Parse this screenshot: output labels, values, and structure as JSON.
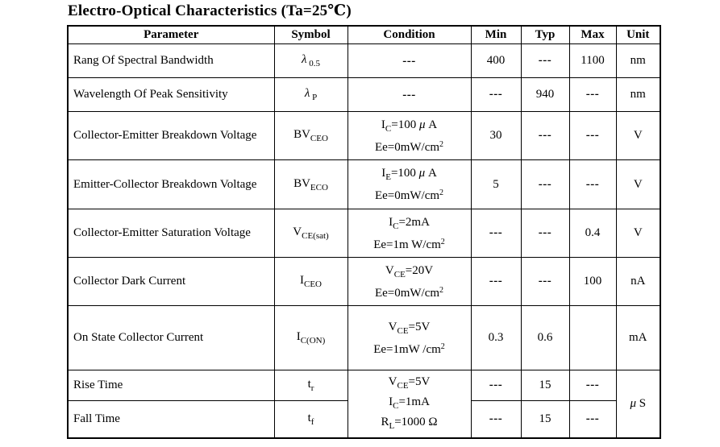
{
  "title": "Electro-Optical Characteristics (Ta=25℃)",
  "table": {
    "headers": [
      "Parameter",
      "Symbol",
      "Condition",
      "Min",
      "Typ",
      "Max",
      "Unit"
    ],
    "rows": [
      {
        "parameter": "Rang Of Spectral Bandwidth",
        "symbol": [
          {
            "t": "λ",
            "st": "it"
          },
          {
            "t": " 0.5",
            "st": "sub"
          }
        ],
        "condition": {
          "lines": [
            [
              {
                "t": "---"
              }
            ]
          ]
        },
        "min": "400",
        "typ": "---",
        "max": "1100",
        "unit": {
          "segs": [
            {
              "t": "nm"
            }
          ]
        }
      },
      {
        "parameter": "Wavelength Of Peak Sensitivity",
        "symbol": [
          {
            "t": "λ",
            "st": "it"
          },
          {
            "t": " P",
            "st": "sub"
          }
        ],
        "condition": {
          "lines": [
            [
              {
                "t": "---"
              }
            ]
          ]
        },
        "min": "---",
        "typ": "940",
        "max": "---",
        "unit": {
          "segs": [
            {
              "t": "nm"
            }
          ]
        }
      },
      {
        "parameter": "Collector-Emitter Breakdown Voltage",
        "symbol": [
          {
            "t": "BV"
          },
          {
            "t": "CEO",
            "st": "sub"
          }
        ],
        "condition": {
          "lines": [
            [
              {
                "t": "I"
              },
              {
                "t": "C",
                "st": "sub"
              },
              {
                "t": "=100 "
              },
              {
                "t": "μ",
                "st": "it"
              },
              {
                "t": " A"
              }
            ],
            [
              {
                "t": "Ee=0mW/cm"
              },
              {
                "t": "2",
                "st": "sup"
              }
            ]
          ]
        },
        "min": "30",
        "typ": "---",
        "max": "---",
        "unit": {
          "segs": [
            {
              "t": "V"
            }
          ]
        }
      },
      {
        "parameter": "Emitter-Collector Breakdown Voltage",
        "symbol": [
          {
            "t": "BV"
          },
          {
            "t": "ECO",
            "st": "sub"
          }
        ],
        "condition": {
          "lines": [
            [
              {
                "t": "I"
              },
              {
                "t": "E",
                "st": "sub"
              },
              {
                "t": "=100 "
              },
              {
                "t": "μ",
                "st": "it"
              },
              {
                "t": " A"
              }
            ],
            [
              {
                "t": "Ee=0mW/cm"
              },
              {
                "t": "2",
                "st": "sup"
              }
            ]
          ]
        },
        "min": "5",
        "typ": "---",
        "max": "---",
        "unit": {
          "segs": [
            {
              "t": "V"
            }
          ]
        }
      },
      {
        "parameter": "Collector-Emitter Saturation Voltage",
        "symbol": [
          {
            "t": "V"
          },
          {
            "t": "CE(sat)",
            "st": "sub"
          }
        ],
        "condition": {
          "lines": [
            [
              {
                "t": "I"
              },
              {
                "t": "C",
                "st": "sub"
              },
              {
                "t": "=2mA"
              }
            ],
            [
              {
                "t": "Ee=1m W/cm"
              },
              {
                "t": "2",
                "st": "sup"
              }
            ]
          ]
        },
        "min": "---",
        "typ": "---",
        "max": "0.4",
        "unit": {
          "segs": [
            {
              "t": "V"
            }
          ]
        }
      },
      {
        "parameter": "Collector Dark Current",
        "symbol": [
          {
            "t": "I"
          },
          {
            "t": "CEO",
            "st": "sub"
          }
        ],
        "condition": {
          "lines": [
            [
              {
                "t": "V"
              },
              {
                "t": "CE",
                "st": "sub"
              },
              {
                "t": "=20V"
              }
            ],
            [
              {
                "t": "Ee=0mW/cm"
              },
              {
                "t": "2",
                "st": "sup"
              }
            ]
          ]
        },
        "min": "---",
        "typ": "---",
        "max": "100",
        "unit": {
          "segs": [
            {
              "t": "nA"
            }
          ]
        }
      },
      {
        "parameter": "On State Collector Current",
        "symbol": [
          {
            "t": "I"
          },
          {
            "t": "C(ON)",
            "st": "sub"
          }
        ],
        "condition": {
          "lines": [
            [
              {
                "t": "V"
              },
              {
                "t": "CE",
                "st": "sub"
              },
              {
                "t": "=5V"
              }
            ],
            [
              {
                "t": "Ee=1mW /cm"
              },
              {
                "t": "2",
                "st": "sup"
              }
            ]
          ]
        },
        "min": "0.3",
        "typ": "0.6",
        "max": "",
        "unit": {
          "segs": [
            {
              "t": "mA"
            }
          ]
        }
      },
      {
        "parameter": "Rise Time",
        "symbol": [
          {
            "t": "t"
          },
          {
            "t": "r",
            "st": "sub"
          }
        ],
        "condition": {
          "rowspan": 2,
          "lines": [
            [
              {
                "t": "V"
              },
              {
                "t": "CE",
                "st": "sub"
              },
              {
                "t": "=5V"
              }
            ],
            [
              {
                "t": "I"
              },
              {
                "t": "C",
                "st": "sub"
              },
              {
                "t": "=1mA"
              }
            ],
            [
              {
                "t": "R"
              },
              {
                "t": "L",
                "st": "sub"
              },
              {
                "t": "=1000 Ω"
              }
            ]
          ]
        },
        "min": "---",
        "typ": "15",
        "max": "---",
        "unit": {
          "rowspan": 2,
          "segs": [
            {
              "t": "μ",
              "st": "it"
            },
            {
              "t": " S"
            }
          ]
        }
      },
      {
        "parameter": "Fall Time",
        "symbol": [
          {
            "t": "t"
          },
          {
            "t": "f",
            "st": "sub"
          }
        ],
        "condition": null,
        "min": "---",
        "typ": "15",
        "max": "---",
        "unit": null
      }
    ]
  }
}
